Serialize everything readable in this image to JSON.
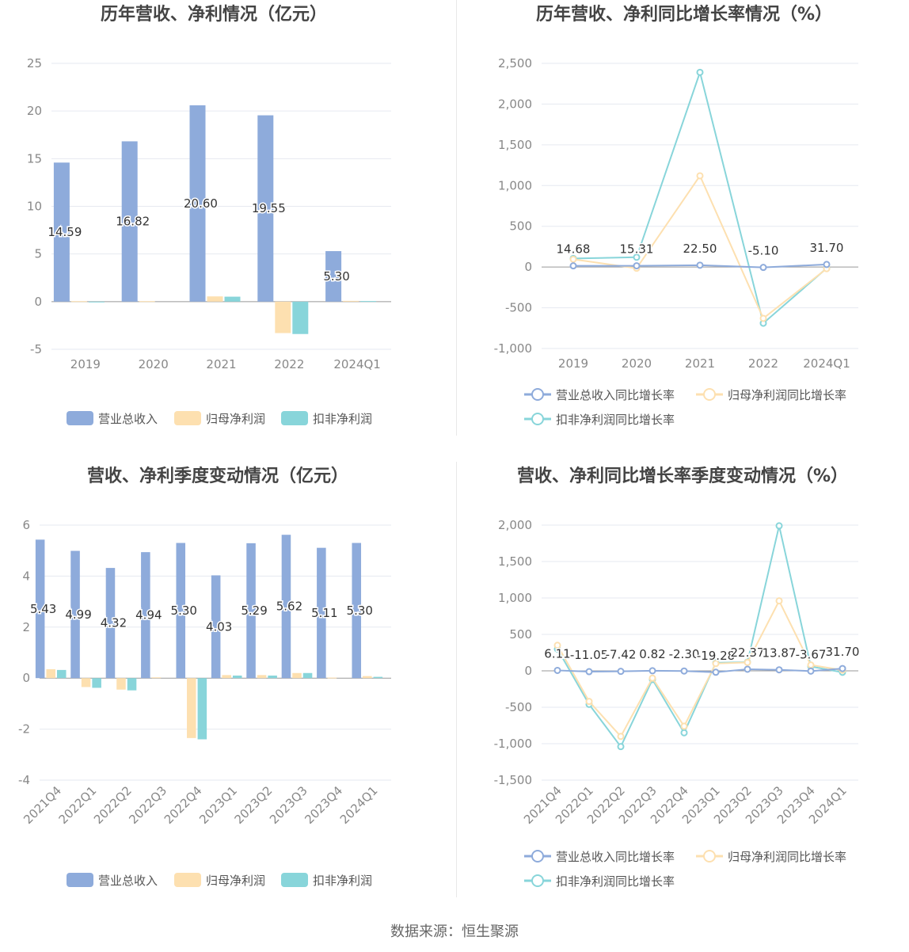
{
  "source": "数据来源：恒生聚源",
  "colors": {
    "revenue": "#8eabdb",
    "net_profit": "#fde0b0",
    "deducted": "#88d5da"
  },
  "legends": {
    "bars": [
      "营业总收入",
      "归母净利润",
      "扣非净利润"
    ],
    "growth": [
      "营业总收入同比增长率",
      "归母净利润同比增长率",
      "扣非净利润同比增长率"
    ]
  },
  "chart_data": [
    {
      "type": "bar",
      "title": "历年营收、净利情况（亿元）",
      "categories": [
        "2019",
        "2020",
        "2021",
        "2022",
        "2024Q1"
      ],
      "ylim": [
        -5,
        25
      ],
      "yticks": [
        "25",
        "20",
        "15",
        "10",
        "5",
        "0",
        "-5"
      ],
      "ytick_values": [
        25,
        20,
        15,
        10,
        5,
        0,
        -5
      ],
      "series": [
        {
          "name": "营业总收入",
          "values": [
            14.59,
            16.82,
            20.6,
            19.55,
            5.3
          ]
        },
        {
          "name": "归母净利润",
          "values": [
            0.05,
            0.05,
            0.55,
            -3.3,
            0.08
          ]
        },
        {
          "name": "扣非净利润",
          "values": [
            -0.08,
            0.0,
            0.52,
            -3.4,
            0.06
          ]
        }
      ],
      "data_labels": [
        "14.59",
        "16.82",
        "20.60",
        "19.55",
        "5.30"
      ],
      "legend_position": "bottom"
    },
    {
      "type": "line",
      "title": "历年营收、净利同比增长率情况（%）",
      "categories": [
        "2019",
        "2020",
        "2021",
        "2022",
        "2024Q1"
      ],
      "ylim": [
        -1000,
        2500
      ],
      "yticks": [
        "2,500",
        "2,000",
        "1,500",
        "1,000",
        "500",
        "0",
        "-500",
        "-1,000"
      ],
      "ytick_values": [
        2500,
        2000,
        1500,
        1000,
        500,
        0,
        -500,
        -1000
      ],
      "series": [
        {
          "name": "营业总收入同比增长率",
          "values": [
            14.68,
            15.31,
            22.5,
            -5.1,
            31.7
          ]
        },
        {
          "name": "归母净利润同比增长率",
          "values": [
            95,
            -15,
            1120,
            -630,
            -20
          ]
        },
        {
          "name": "扣非净利润同比增长率",
          "values": [
            105,
            120,
            2390,
            -690,
            -15
          ]
        }
      ],
      "data_labels": [
        "14.68",
        "15.31",
        "22.50",
        "-5.10",
        "31.70"
      ],
      "legend_position": "bottom"
    },
    {
      "type": "bar",
      "title": "营收、净利季度变动情况（亿元）",
      "categories": [
        "2021Q4",
        "2022Q1",
        "2022Q2",
        "2022Q3",
        "2022Q4",
        "2023Q1",
        "2023Q2",
        "2023Q3",
        "2023Q4",
        "2024Q1"
      ],
      "ylim": [
        -4,
        6
      ],
      "yticks": [
        "6",
        "4",
        "2",
        "0",
        "-2",
        "-4"
      ],
      "ytick_values": [
        6,
        4,
        2,
        0,
        -2,
        -4
      ],
      "series": [
        {
          "name": "营业总收入",
          "values": [
            5.43,
            4.99,
            4.32,
            4.94,
            5.3,
            4.03,
            5.29,
            5.62,
            5.11,
            5.3
          ]
        },
        {
          "name": "归母净利润",
          "values": [
            0.35,
            -0.35,
            -0.45,
            0.03,
            -2.35,
            0.12,
            0.12,
            0.2,
            0.02,
            0.08
          ]
        },
        {
          "name": "扣非净利润",
          "values": [
            0.32,
            -0.38,
            -0.48,
            0.0,
            -2.4,
            0.1,
            0.1,
            0.2,
            0.0,
            0.05
          ]
        }
      ],
      "data_labels": [
        "5.43",
        "4.99",
        "4.32",
        "4.94",
        "5.30",
        "4.03",
        "5.29",
        "5.62",
        "5.11",
        "5.30"
      ],
      "legend_position": "bottom"
    },
    {
      "type": "line",
      "title": "营收、净利同比增长率季度变动情况（%）",
      "categories": [
        "2021Q4",
        "2022Q1",
        "2022Q2",
        "2022Q3",
        "2022Q4",
        "2023Q1",
        "2023Q2",
        "2023Q3",
        "2023Q4",
        "2024Q1"
      ],
      "ylim": [
        -1500,
        2000
      ],
      "yticks": [
        "2,000",
        "1,500",
        "1,000",
        "500",
        "0",
        "-500",
        "-1,000",
        "-1,500"
      ],
      "ytick_values": [
        2000,
        1500,
        1000,
        500,
        0,
        -500,
        -1000,
        -1500
      ],
      "series": [
        {
          "name": "营业总收入同比增长率",
          "values": [
            6.11,
            -11.05,
            -7.42,
            0.82,
            -2.3,
            -19.28,
            22.37,
            13.87,
            -3.67,
            31.7
          ]
        },
        {
          "name": "归母净利润同比增长率",
          "values": [
            350,
            -420,
            -900,
            -100,
            -760,
            100,
            115,
            960,
            80,
            10
          ]
        },
        {
          "name": "扣非净利润同比增长率",
          "values": [
            300,
            -460,
            -1040,
            -120,
            -850,
            110,
            120,
            1990,
            60,
            -20
          ]
        }
      ],
      "data_labels": [
        "6.11",
        "-11.05",
        "-7.42",
        "0.82",
        "-2.30",
        "-19.28",
        "22.37",
        "13.87",
        "-3.67",
        "31.70"
      ],
      "legend_position": "bottom"
    }
  ]
}
